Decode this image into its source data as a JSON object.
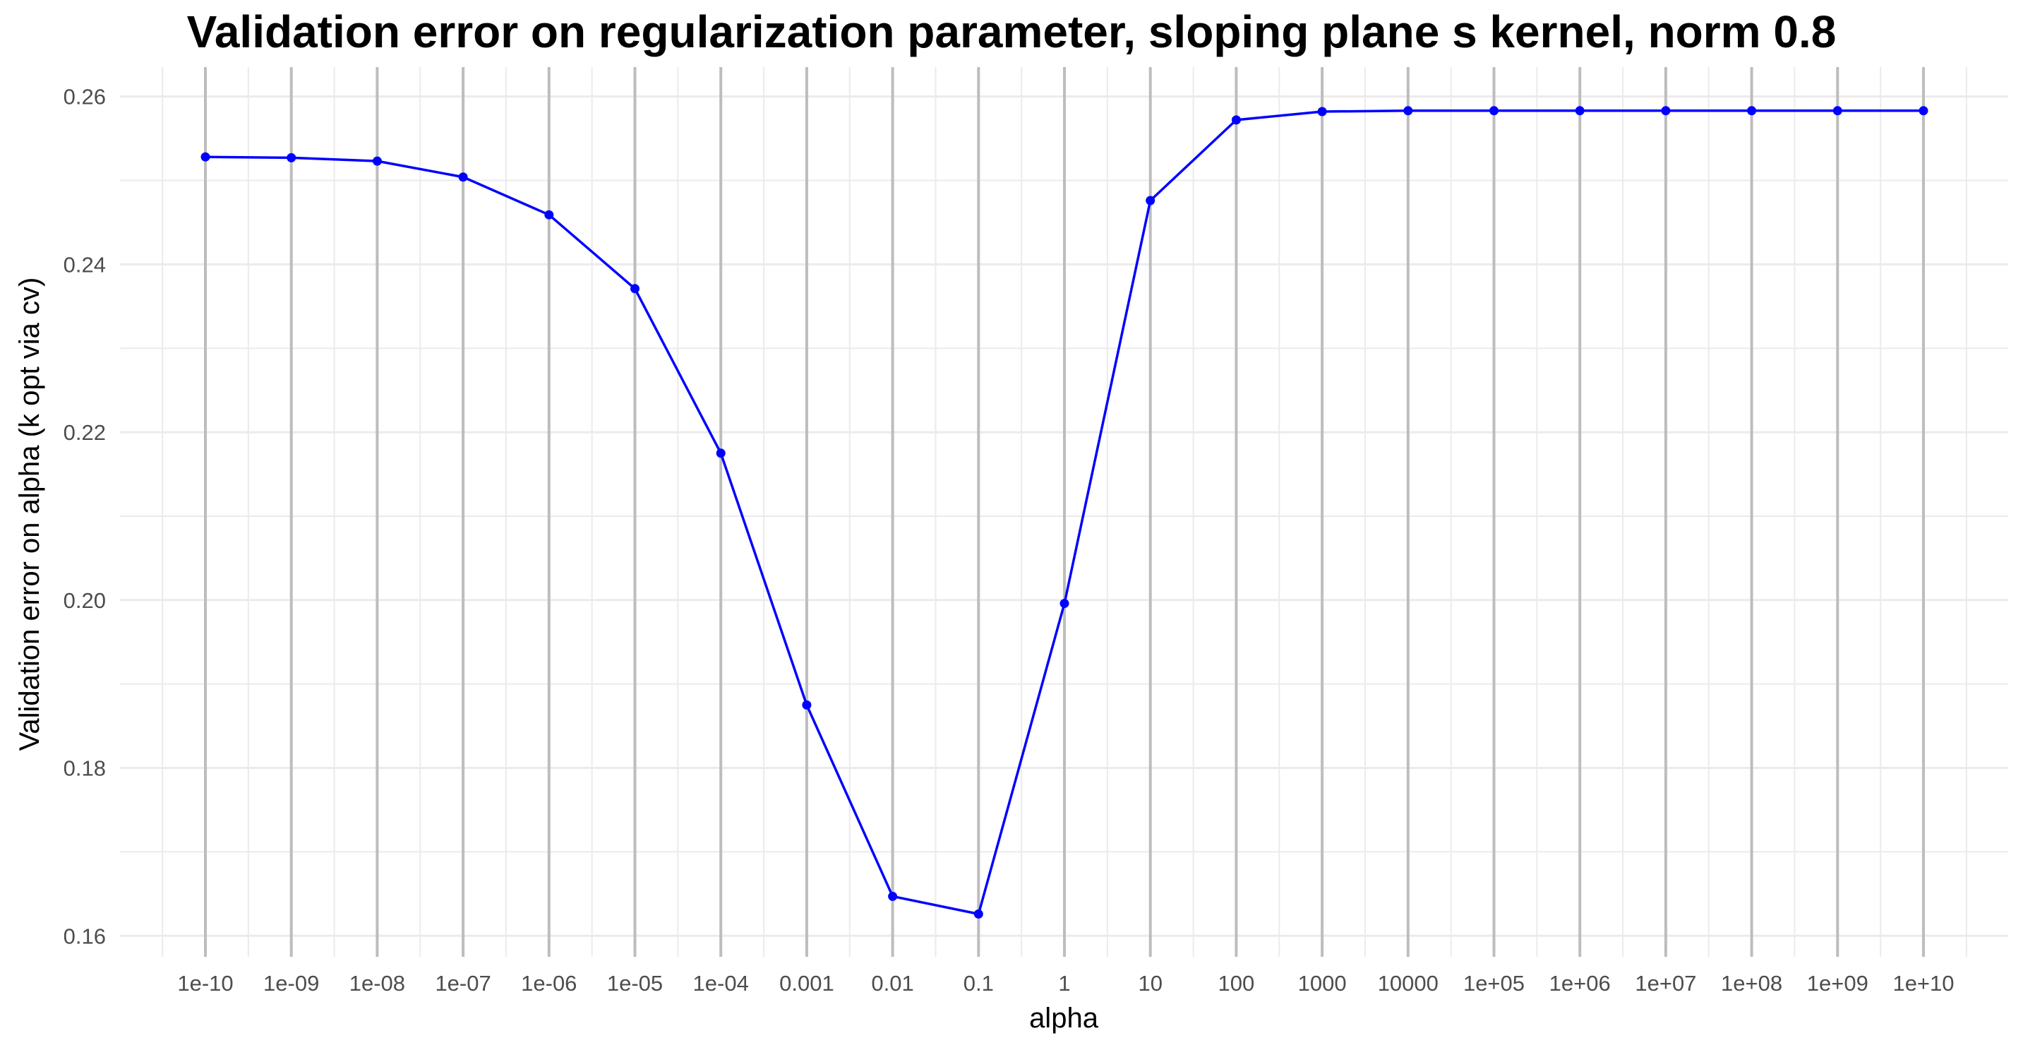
{
  "chart_data": {
    "type": "line",
    "title": "Validation error on regularization parameter, sloping plane s kernel, norm 0.8",
    "xlabel": "alpha",
    "ylabel": "Validation error on alpha (k opt via cv)",
    "x_scale": "log10",
    "categories": [
      "1e-10",
      "1e-09",
      "1e-08",
      "1e-07",
      "1e-06",
      "1e-05",
      "1e-04",
      "0.001",
      "0.01",
      "0.1",
      "1",
      "10",
      "100",
      "1000",
      "10000",
      "1e+05",
      "1e+06",
      "1e+07",
      "1e+08",
      "1e+09",
      "1e+10"
    ],
    "x": [
      1e-10,
      1e-09,
      1e-08,
      1e-07,
      1e-06,
      1e-05,
      0.0001,
      0.001,
      0.01,
      0.1,
      1,
      10,
      100,
      1000,
      10000,
      100000.0,
      1000000.0,
      10000000.0,
      100000000.0,
      1000000000.0,
      10000000000.0
    ],
    "y_ticks": [
      0.16,
      0.18,
      0.2,
      0.22,
      0.24,
      0.26
    ],
    "y_tick_labels": [
      "0.16",
      "0.18",
      "0.20",
      "0.22",
      "0.24",
      "0.26"
    ],
    "ylim": [
      0.1575,
      0.2635
    ],
    "grid": true,
    "legend": "none",
    "series": [
      {
        "color": "#0000ff",
        "values": [
          0.2528,
          0.2527,
          0.2523,
          0.2504,
          0.2459,
          0.2371,
          0.2175,
          0.1875,
          0.1647,
          0.1626,
          0.1996,
          0.2476,
          0.2572,
          0.2582,
          0.2583,
          0.2583,
          0.2583,
          0.2583,
          0.2583,
          0.2583,
          0.2583
        ]
      }
    ]
  }
}
